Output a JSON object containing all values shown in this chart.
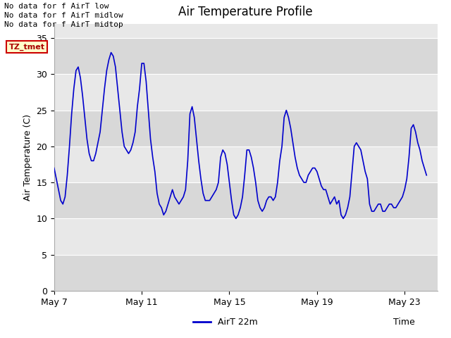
{
  "title": "Air Temperature Profile",
  "xlabel": "Time",
  "ylabel": "Air Temperature (C)",
  "ylim": [
    0,
    37
  ],
  "yticks": [
    0,
    5,
    10,
    15,
    20,
    25,
    30,
    35
  ],
  "line_color": "#0000cc",
  "line_width": 1.2,
  "bg_color": "#ffffff",
  "plot_bg_color": "#e8e8e8",
  "legend_label": "AirT 22m",
  "no_data_texts": [
    "No data for f AirT low",
    "No data for f AirT midlow",
    "No data for f AirT midtop"
  ],
  "tz_label": "TZ_tmet",
  "x_tick_labels": [
    "May 7",
    "May 11",
    "May 15",
    "May 19",
    "May 23"
  ],
  "x_tick_positions": [
    0,
    4,
    8,
    12,
    16
  ],
  "xlim": [
    0,
    17.5
  ],
  "band_colors": [
    "#d8d8d8",
    "#e8e8e8"
  ],
  "band_ranges": [
    [
      0,
      5
    ],
    [
      5,
      10
    ],
    [
      10,
      15
    ],
    [
      15,
      20
    ],
    [
      20,
      25
    ],
    [
      25,
      30
    ],
    [
      30,
      35
    ],
    [
      35,
      40
    ]
  ],
  "time_points": [
    0.0,
    0.1,
    0.2,
    0.3,
    0.4,
    0.5,
    0.6,
    0.7,
    0.8,
    0.9,
    1.0,
    1.1,
    1.2,
    1.3,
    1.4,
    1.5,
    1.6,
    1.7,
    1.8,
    1.9,
    2.0,
    2.1,
    2.2,
    2.3,
    2.4,
    2.5,
    2.6,
    2.7,
    2.8,
    2.9,
    3.0,
    3.1,
    3.2,
    3.3,
    3.4,
    3.5,
    3.6,
    3.7,
    3.8,
    3.9,
    4.0,
    4.1,
    4.2,
    4.3,
    4.4,
    4.5,
    4.6,
    4.7,
    4.8,
    4.9,
    5.0,
    5.1,
    5.2,
    5.3,
    5.4,
    5.5,
    5.6,
    5.7,
    5.8,
    5.9,
    6.0,
    6.1,
    6.2,
    6.3,
    6.4,
    6.5,
    6.6,
    6.7,
    6.8,
    6.9,
    7.0,
    7.1,
    7.2,
    7.3,
    7.4,
    7.5,
    7.6,
    7.7,
    7.8,
    7.9,
    8.0,
    8.1,
    8.2,
    8.3,
    8.4,
    8.5,
    8.6,
    8.7,
    8.8,
    8.9,
    9.0,
    9.1,
    9.2,
    9.3,
    9.4,
    9.5,
    9.6,
    9.7,
    9.8,
    9.9,
    10.0,
    10.1,
    10.2,
    10.3,
    10.4,
    10.5,
    10.6,
    10.7,
    10.8,
    10.9,
    11.0,
    11.1,
    11.2,
    11.3,
    11.4,
    11.5,
    11.6,
    11.7,
    11.8,
    11.9,
    12.0,
    12.1,
    12.2,
    12.3,
    12.4,
    12.5,
    12.6,
    12.7,
    12.8,
    12.9,
    13.0,
    13.1,
    13.2,
    13.3,
    13.4,
    13.5,
    13.6,
    13.7,
    13.8,
    13.9,
    14.0,
    14.1,
    14.2,
    14.3,
    14.4,
    14.5,
    14.6,
    14.7,
    14.8,
    14.9,
    15.0,
    15.1,
    15.2,
    15.3,
    15.4,
    15.5,
    15.6,
    15.7,
    15.8,
    15.9,
    16.0,
    16.1,
    16.2,
    16.3,
    16.4,
    16.5,
    16.6,
    16.7,
    16.8,
    16.9,
    17.0
  ],
  "temperature_values": [
    17.0,
    15.5,
    14.0,
    12.5,
    12.0,
    13.0,
    16.0,
    20.0,
    24.5,
    28.0,
    30.5,
    31.0,
    29.5,
    27.0,
    24.0,
    21.0,
    19.0,
    18.0,
    18.0,
    19.0,
    20.5,
    22.0,
    25.0,
    28.0,
    30.5,
    32.0,
    33.0,
    32.5,
    31.0,
    28.0,
    25.0,
    22.0,
    20.0,
    19.5,
    19.0,
    19.5,
    20.5,
    22.0,
    25.5,
    28.0,
    31.5,
    31.5,
    29.0,
    25.0,
    21.0,
    18.5,
    16.5,
    13.5,
    12.0,
    11.5,
    10.5,
    11.0,
    12.0,
    13.0,
    14.0,
    13.0,
    12.5,
    12.0,
    12.5,
    13.0,
    14.0,
    18.0,
    24.5,
    25.5,
    24.0,
    21.0,
    18.0,
    15.5,
    13.5,
    12.5,
    12.5,
    12.5,
    13.0,
    13.5,
    14.0,
    15.0,
    18.5,
    19.5,
    19.0,
    17.5,
    15.0,
    12.5,
    10.5,
    10.0,
    10.5,
    11.5,
    13.0,
    16.0,
    19.5,
    19.5,
    18.5,
    17.0,
    15.0,
    12.5,
    11.5,
    11.0,
    11.5,
    12.5,
    13.0,
    13.0,
    12.5,
    13.0,
    15.0,
    18.0,
    20.0,
    24.0,
    25.0,
    24.0,
    22.5,
    20.5,
    18.5,
    17.0,
    16.0,
    15.5,
    15.0,
    15.0,
    16.0,
    16.5,
    17.0,
    17.0,
    16.5,
    15.5,
    14.5,
    14.0,
    14.0,
    13.0,
    12.0,
    12.5,
    13.0,
    12.0,
    12.5,
    10.5,
    10.0,
    10.5,
    11.5,
    13.0,
    16.5,
    20.0,
    20.5,
    20.0,
    19.5,
    18.0,
    16.5,
    15.5,
    12.0,
    11.0,
    11.0,
    11.5,
    12.0,
    12.0,
    11.0,
    11.0,
    11.5,
    12.0,
    12.0,
    11.5,
    11.5,
    12.0,
    12.5,
    13.0,
    14.0,
    15.5,
    18.5,
    22.5,
    23.0,
    22.0,
    20.5,
    19.5,
    18.0,
    17.0,
    16.0
  ]
}
